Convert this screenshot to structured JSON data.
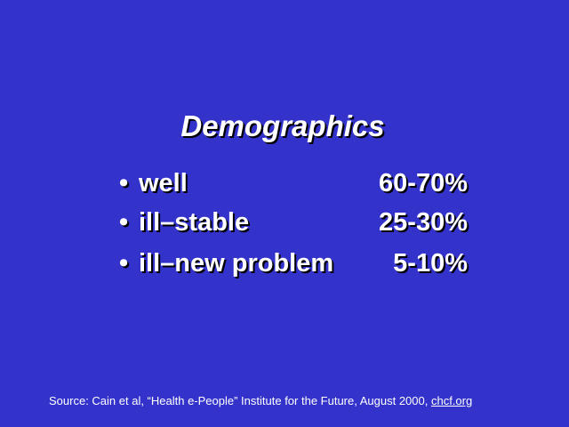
{
  "slide": {
    "title": "Demographics",
    "bullet_symbol": "•",
    "items": [
      {
        "label": "well",
        "value": "60-70%"
      },
      {
        "label": "ill–stable",
        "value": "25-30%"
      },
      {
        "label": "ill–new problem",
        "value": "5-10%"
      }
    ],
    "footer": {
      "text": "Source: Cain et al, “Health e-People” Institute for the Future, August 2000, ",
      "link": "chcf.org"
    }
  },
  "colors": {
    "background": "#3333cc",
    "text": "#ffffff",
    "shadow": "#000000"
  }
}
